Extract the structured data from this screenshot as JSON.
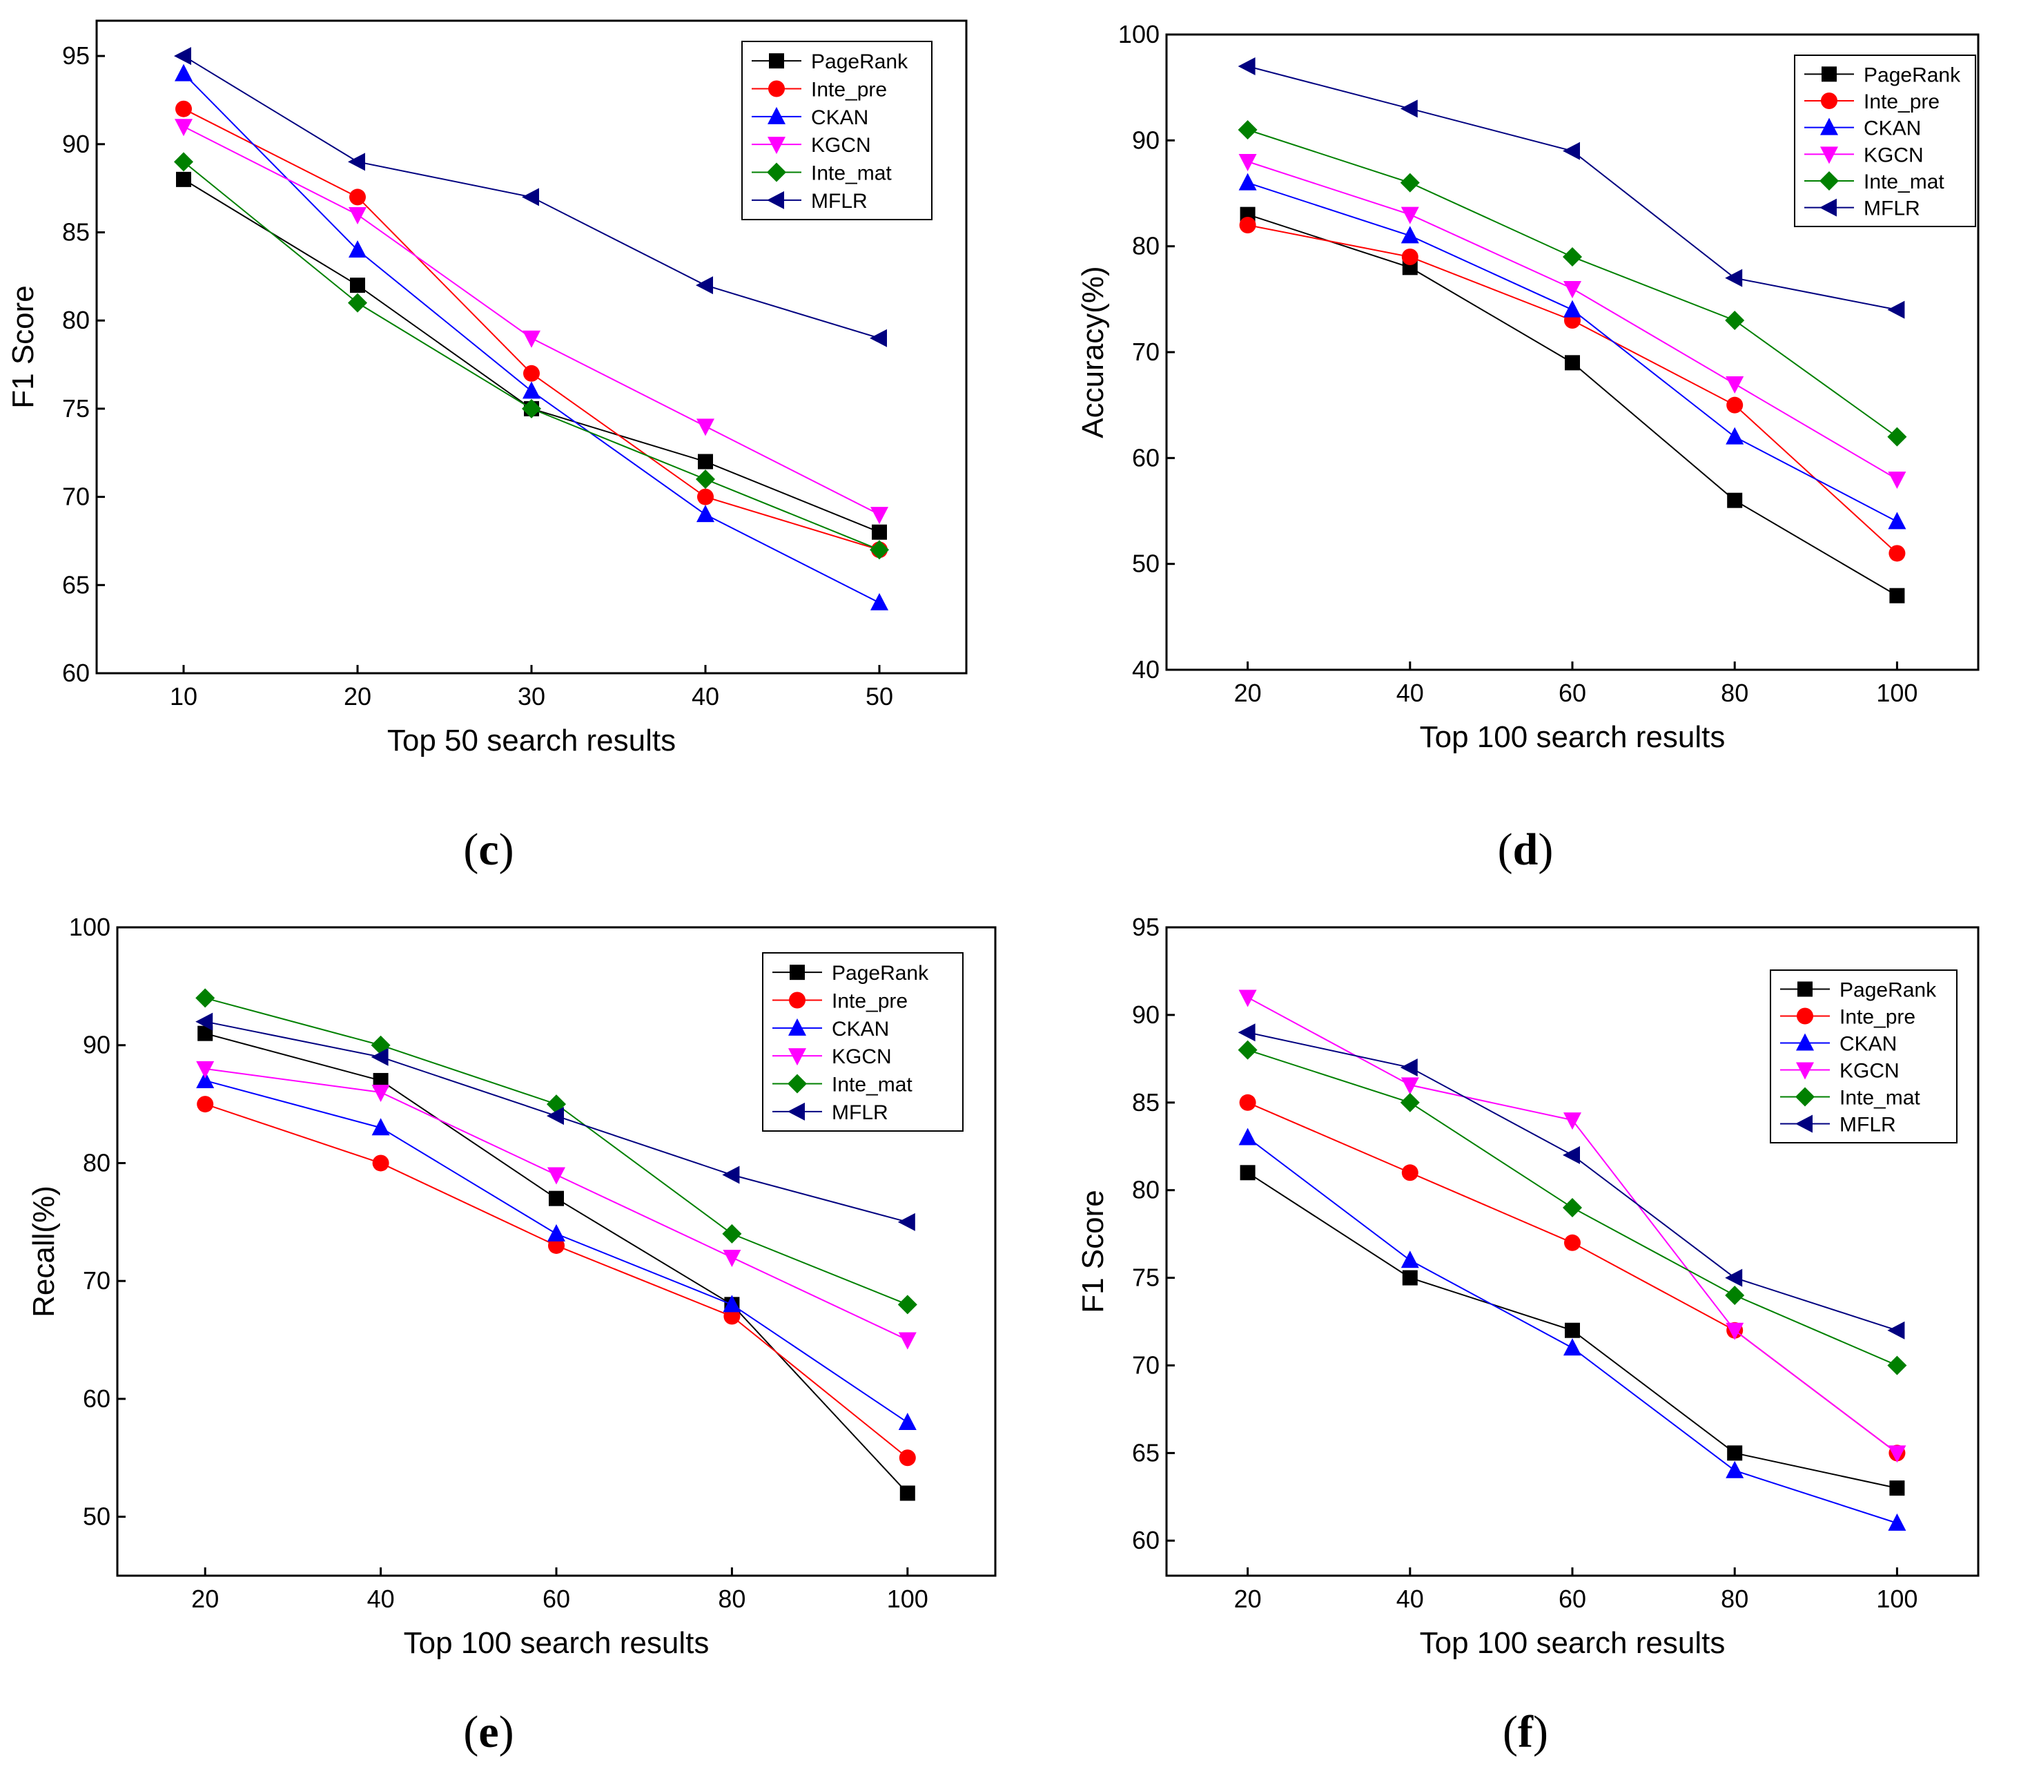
{
  "colors": {
    "PageRank": "#000000",
    "Inte_pre": "#ff0000",
    "CKAN": "#0000ff",
    "KGCN": "#ff00ff",
    "Inte_mat": "#008000",
    "MFLR": "#000080"
  },
  "markers": {
    "PageRank": "square",
    "Inte_pre": "circle",
    "CKAN": "triangle-up",
    "KGCN": "triangle-down",
    "Inte_mat": "diamond",
    "MFLR": "triangle-left"
  },
  "chart_data": [
    {
      "type": "line",
      "caption_letter": "c",
      "xlabel": "Top 50 search results",
      "ylabel": "F1 Score",
      "x": [
        10,
        20,
        30,
        40,
        50
      ],
      "xlim": [
        5,
        55
      ],
      "ylim": [
        60,
        97
      ],
      "yticks": [
        60,
        65,
        70,
        75,
        80,
        85,
        90,
        95
      ],
      "legend_position": "top-right",
      "series": [
        {
          "name": "PageRank",
          "values": [
            88,
            82,
            75,
            72,
            68
          ]
        },
        {
          "name": "Inte_pre",
          "values": [
            92,
            87,
            77,
            70,
            67
          ]
        },
        {
          "name": "CKAN",
          "values": [
            94,
            84,
            76,
            69,
            64
          ]
        },
        {
          "name": "KGCN",
          "values": [
            91,
            86,
            79,
            74,
            69
          ]
        },
        {
          "name": "Inte_mat",
          "values": [
            89,
            81,
            75,
            71,
            67
          ]
        },
        {
          "name": "MFLR",
          "values": [
            95,
            89,
            87,
            82,
            79
          ]
        }
      ]
    },
    {
      "type": "line",
      "caption_letter": "d",
      "xlabel": "Top 100 search results",
      "ylabel": "Accuracy(%)",
      "x": [
        20,
        40,
        60,
        80,
        100
      ],
      "xlim": [
        10,
        110
      ],
      "ylim": [
        40,
        100
      ],
      "yticks": [
        40,
        50,
        60,
        70,
        80,
        90,
        100
      ],
      "legend_position": "top-right",
      "series": [
        {
          "name": "PageRank",
          "values": [
            83,
            78,
            69,
            56,
            47
          ]
        },
        {
          "name": "Inte_pre",
          "values": [
            82,
            79,
            73,
            65,
            51
          ]
        },
        {
          "name": "CKAN",
          "values": [
            86,
            81,
            74,
            62,
            54
          ]
        },
        {
          "name": "KGCN",
          "values": [
            88,
            83,
            76,
            67,
            58
          ]
        },
        {
          "name": "Inte_mat",
          "values": [
            91,
            86,
            79,
            73,
            62
          ]
        },
        {
          "name": "MFLR",
          "values": [
            97,
            93,
            89,
            77,
            74
          ]
        }
      ]
    },
    {
      "type": "line",
      "caption_letter": "e",
      "xlabel": "Top 100 search results",
      "ylabel": "Recall(%)",
      "x": [
        20,
        40,
        60,
        80,
        100
      ],
      "xlim": [
        10,
        110
      ],
      "ylim": [
        45,
        100
      ],
      "yticks": [
        50,
        60,
        70,
        80,
        90,
        100
      ],
      "legend_position": "top-right",
      "series": [
        {
          "name": "PageRank",
          "values": [
            91,
            87,
            77,
            68,
            52
          ]
        },
        {
          "name": "Inte_pre",
          "values": [
            85,
            80,
            73,
            67,
            55
          ]
        },
        {
          "name": "CKAN",
          "values": [
            87,
            83,
            74,
            68,
            58
          ]
        },
        {
          "name": "KGCN",
          "values": [
            88,
            86,
            79,
            72,
            65
          ]
        },
        {
          "name": "Inte_mat",
          "values": [
            94,
            90,
            85,
            74,
            68
          ]
        },
        {
          "name": "MFLR",
          "values": [
            92,
            89,
            84,
            79,
            75
          ]
        }
      ]
    },
    {
      "type": "line",
      "caption_letter": "f",
      "xlabel": "Top 100 search results",
      "ylabel": "F1 Score",
      "x": [
        20,
        40,
        60,
        80,
        100
      ],
      "xlim": [
        10,
        110
      ],
      "ylim": [
        58,
        95
      ],
      "yticks": [
        60,
        65,
        70,
        75,
        80,
        85,
        90,
        95
      ],
      "legend_position": "top-right",
      "series": [
        {
          "name": "PageRank",
          "values": [
            81,
            75,
            72,
            65,
            63
          ]
        },
        {
          "name": "Inte_pre",
          "values": [
            85,
            81,
            77,
            72,
            65
          ]
        },
        {
          "name": "CKAN",
          "values": [
            83,
            76,
            71,
            64,
            61
          ]
        },
        {
          "name": "KGCN",
          "values": [
            91,
            86,
            84,
            72,
            65
          ]
        },
        {
          "name": "Inte_mat",
          "values": [
            88,
            85,
            79,
            74,
            70
          ]
        },
        {
          "name": "MFLR",
          "values": [
            89,
            87,
            82,
            75,
            72
          ]
        }
      ]
    }
  ]
}
